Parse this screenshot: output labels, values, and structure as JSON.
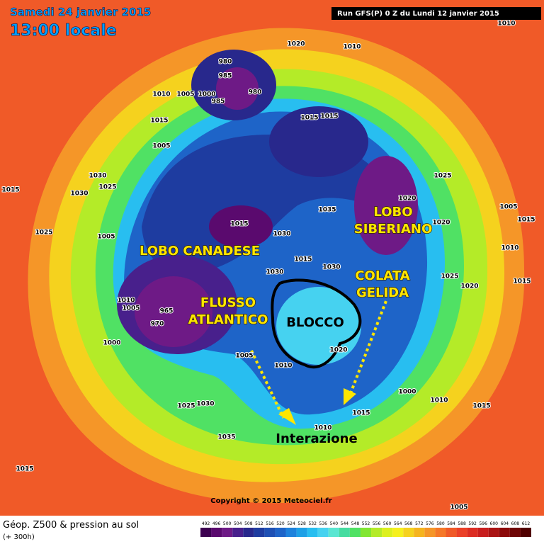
{
  "header": {
    "date": "Samedi 24 janvier 2015",
    "time": "13:00 locale"
  },
  "run": "Run GFS(P) 0 Z du Lundi 12 janvier 2015",
  "annotations": [
    "LOBO CANADESE",
    "FLUSSO ATLANTICO",
    "BLOCCO",
    "LOBO SIBERIANO",
    "COLATA GELIDA",
    "Interazione"
  ],
  "isobar_labels": [
    "1010",
    "1020",
    "1010",
    "980",
    "985",
    "980",
    "985",
    "1010",
    "1005",
    "1000",
    "1015",
    "1015",
    "1015",
    "1005",
    "1030",
    "1030",
    "1025",
    "1015",
    "1025",
    "1005",
    "1015",
    "1030",
    "1035",
    "1020",
    "1025",
    "1020",
    "1005",
    "1015",
    "1015",
    "1030",
    "1030",
    "1010",
    "1025",
    "1020",
    "1015",
    "1010",
    "1005",
    "965",
    "970",
    "1000",
    "1005",
    "1010",
    "1020",
    "1000",
    "1010",
    "1015",
    "1015",
    "1025",
    "1030",
    "1035",
    "1010",
    "1015",
    "1005"
  ],
  "copyright": "Copyright © 2015 Meteociel.fr",
  "footer": {
    "title": "Géop. Z500 & pression au sol",
    "lead": "(+ 300h)"
  },
  "scale": {
    "values": [
      492,
      496,
      500,
      504,
      508,
      512,
      516,
      520,
      524,
      528,
      532,
      536,
      540,
      544,
      548,
      552,
      556,
      560,
      564,
      568,
      572,
      576,
      580,
      584,
      588,
      592,
      596,
      600,
      604,
      608,
      612
    ],
    "colors": [
      "#3c0050",
      "#5a0a6e",
      "#6e1a86",
      "#48208c",
      "#28288c",
      "#1e3ca0",
      "#1e50b4",
      "#1e64c8",
      "#1e82dc",
      "#1ea0e6",
      "#28bef0",
      "#46d2f0",
      "#5ae6d2",
      "#46dca0",
      "#50e164",
      "#82e632",
      "#b4eb28",
      "#dcf01e",
      "#f5f01e",
      "#f5d21e",
      "#f5b41e",
      "#f59628",
      "#f57828",
      "#f05a28",
      "#eb4128",
      "#dc2d23",
      "#c81e1e",
      "#aa1414",
      "#8c0a0a",
      "#6e0505",
      "#500000"
    ]
  }
}
